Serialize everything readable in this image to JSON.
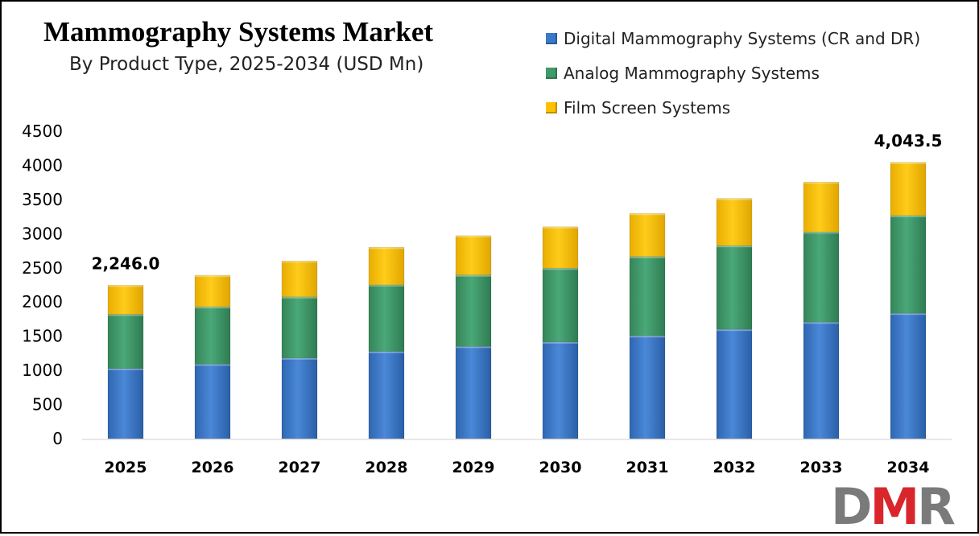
{
  "header": {
    "title": "Mammography Systems Market",
    "subtitle": "By Product Type, 2025-2034 (USD Mn)"
  },
  "legend": {
    "items": [
      {
        "label": "Digital Mammography Systems (CR and DR)",
        "color": "#3a78c9"
      },
      {
        "label": "Analog Mammography Systems",
        "color": "#3f9a6a"
      },
      {
        "label": "Film Screen Systems",
        "color": "#ffc000"
      }
    ]
  },
  "logo": {
    "text": "DMR",
    "d_color": "#7a7a7a",
    "m_color": "#d8262c"
  },
  "chart_data": {
    "type": "bar",
    "stacked": true,
    "categories": [
      "2025",
      "2026",
      "2027",
      "2028",
      "2029",
      "2030",
      "2031",
      "2032",
      "2033",
      "2034"
    ],
    "series": [
      {
        "name": "Digital Mammography Systems (CR and DR)",
        "color": "#3a78c9",
        "values": [
          1025,
          1090,
          1180,
          1275,
          1350,
          1415,
          1505,
          1600,
          1705,
          1835
        ]
      },
      {
        "name": "Analog Mammography Systems",
        "color": "#3f9a6a",
        "values": [
          795,
          840,
          895,
          975,
          1045,
          1080,
          1160,
          1225,
          1320,
          1430
        ]
      },
      {
        "name": "Film Screen Systems",
        "color": "#ffc000",
        "values": [
          426,
          460,
          525,
          550,
          575,
          605,
          630,
          690,
          730,
          778.5
        ]
      }
    ],
    "data_labels": [
      {
        "category": "2025",
        "text": "2,246.0"
      },
      {
        "category": "2034",
        "text": "4,043.5"
      }
    ],
    "ylim": [
      0,
      4500
    ],
    "yticks": [
      0,
      500,
      1000,
      1500,
      2000,
      2500,
      3000,
      3500,
      4000,
      4500
    ],
    "xlabel": "",
    "ylabel": "",
    "grid": false,
    "legend_position": "top-right"
  }
}
